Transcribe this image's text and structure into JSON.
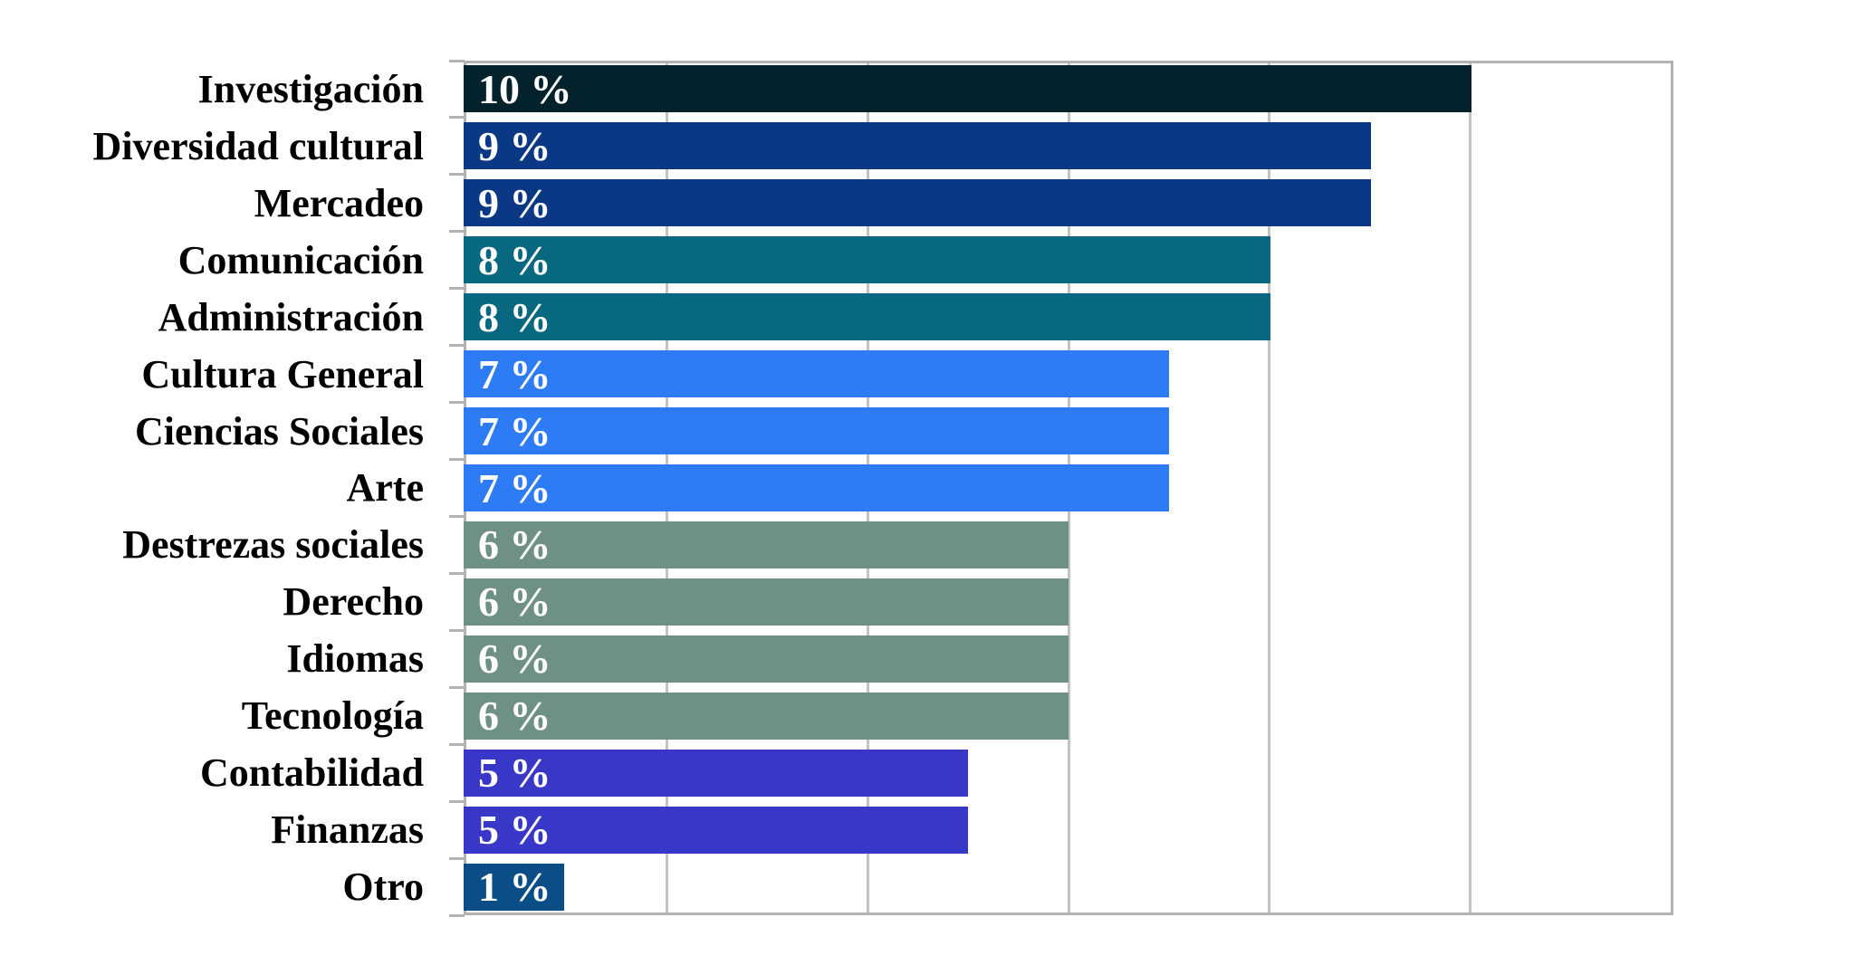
{
  "chart_data": {
    "type": "bar",
    "orientation": "horizontal",
    "title": "",
    "xlabel": "",
    "ylabel": "",
    "legend": "none",
    "grid": "vertical",
    "xlim": [
      0,
      12
    ],
    "gridlines_at": [
      2,
      4,
      6,
      8,
      10
    ],
    "categories": [
      "Investigación",
      "Diversidad cultural",
      "Mercadeo",
      "Comunicación",
      "Administración",
      "Cultura General",
      "Ciencias Sociales",
      "Arte",
      "Destrezas sociales",
      "Derecho",
      "Idiomas",
      "Tecnología",
      "Contabilidad",
      "Finanzas",
      "Otro"
    ],
    "values": [
      10,
      9,
      9,
      8,
      8,
      7,
      7,
      7,
      6,
      6,
      6,
      6,
      5,
      5,
      1
    ],
    "value_labels": [
      "10 %",
      "9 %",
      "9 %",
      "8 %",
      "8 %",
      "7 %",
      "7 %",
      "7 %",
      "6 %",
      "6 %",
      "6 %",
      "6 %",
      "5 %",
      "5 %",
      "1 %"
    ],
    "bar_colors": [
      "#03222c",
      "#0b3884",
      "#0b3884",
      "#086880",
      "#086880",
      "#2d7bf5",
      "#2d7bf5",
      "#2d7bf5",
      "#6f9087",
      "#6f9087",
      "#6f9087",
      "#6f9087",
      "#3937c7",
      "#3937c7",
      "#0b4d86"
    ]
  },
  "colors": {
    "background": "#ffffff",
    "plot_border": "#b2b2b2",
    "gridline": "#c3c3c3",
    "tick": "#b2b2b2",
    "category_text": "#000000",
    "value_text": "#ffffff"
  }
}
